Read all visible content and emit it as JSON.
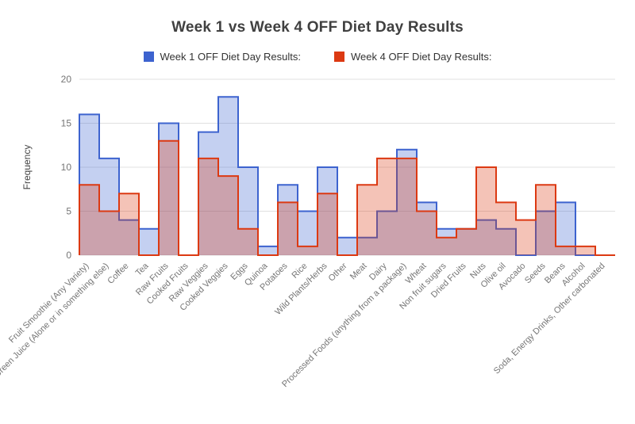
{
  "title": "Week 1 vs Week 4 OFF Diet Day Results",
  "axes": {
    "ylabel": "Frequency",
    "yticks": [
      0,
      5,
      10,
      15,
      20
    ]
  },
  "chart_data": {
    "type": "area",
    "subtype": "stepped-area",
    "title": "Week 1 vs Week 4 OFF Diet Day Results",
    "xlabel": "",
    "ylabel": "Frequency",
    "ylim": [
      0,
      20
    ],
    "yticks": [
      0,
      5,
      10,
      15,
      20
    ],
    "grid": true,
    "legend_position": "top",
    "categories": [
      "Fruit Smoothie (Any Variety)",
      "Green Juice (Alone or in something else)",
      "Coffee",
      "Tea",
      "Raw Fruits",
      "Cooked Fruits",
      "Raw Veggies",
      "Cooked Veggies",
      "Eggs",
      "Quinoa",
      "Potatoes",
      "Rice",
      "Wild Plants/Herbs",
      "Other",
      "Meat",
      "Dairy",
      "Processed Foods (anything from a package)",
      "Wheat",
      "Non fruit sugars",
      "Dried Fruits",
      "Nuts",
      "Olive oil",
      "Avocado",
      "Seeds",
      "Beans",
      "Alcohol",
      "Soda, Energy Drinks, Other carbonated"
    ],
    "series": [
      {
        "name": "Week 1 OFF Diet Day Results:",
        "color": "#3d63cf",
        "fill_opacity": 0.3,
        "values": [
          16,
          11,
          4,
          3,
          15,
          0,
          14,
          18,
          10,
          1,
          8,
          5,
          10,
          2,
          2,
          5,
          12,
          6,
          3,
          3,
          4,
          3,
          0,
          5,
          6,
          0,
          0
        ]
      },
      {
        "name": "Week 4 OFF Diet Day Results:",
        "color": "#dc3912",
        "fill_opacity": 0.3,
        "values": [
          8,
          5,
          7,
          0,
          13,
          0,
          11,
          9,
          3,
          0,
          6,
          1,
          7,
          0,
          8,
          11,
          11,
          5,
          2,
          3,
          10,
          6,
          4,
          8,
          1,
          1,
          0
        ]
      }
    ],
    "colors": {
      "gridline": "#e0e0e0",
      "tick_label": "#757575",
      "axis_title": "#424242"
    }
  }
}
